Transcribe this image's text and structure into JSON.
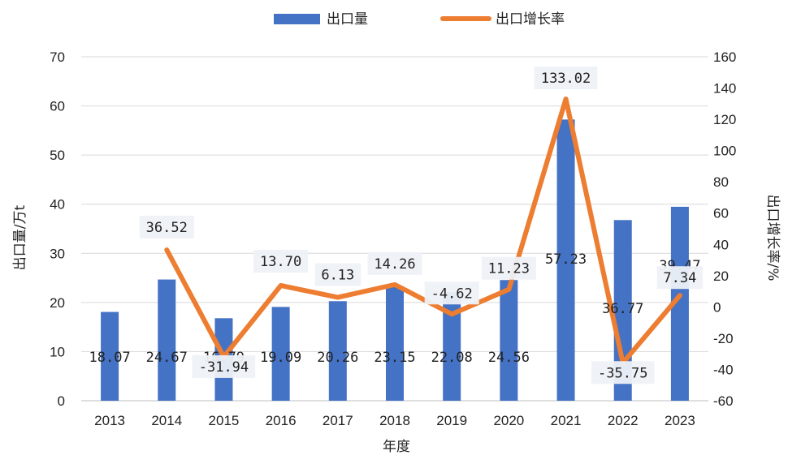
{
  "chart_data": {
    "type": "bar",
    "title": "",
    "xlabel": "年度",
    "categories": [
      "2013",
      "2014",
      "2015",
      "2016",
      "2017",
      "2018",
      "2019",
      "2020",
      "2021",
      "2022",
      "2023"
    ],
    "series": [
      {
        "name": "出口量",
        "kind": "bar",
        "axis": "left",
        "values": [
          18.07,
          24.67,
          16.79,
          19.09,
          20.26,
          23.15,
          22.08,
          24.56,
          57.23,
          36.77,
          39.47
        ],
        "labels": [
          "18.07",
          "24.67",
          "16.79",
          "19.09",
          "20.26",
          "23.15",
          "22.08",
          "24.56",
          "57.23",
          "36.77",
          "39.47"
        ]
      },
      {
        "name": "出口增长率",
        "kind": "line",
        "axis": "right",
        "values": [
          null,
          36.52,
          -31.94,
          13.7,
          6.13,
          14.26,
          -4.62,
          11.23,
          133.02,
          -35.75,
          7.34
        ],
        "labels": [
          "",
          "36.52",
          "-31.94",
          "13.70",
          "6.13",
          "14.26",
          "-4.62",
          "11.23",
          "133.02",
          "-35.75",
          "7.34"
        ]
      }
    ],
    "y_left": {
      "label": "出口量/万t",
      "ylim": [
        0,
        70
      ],
      "ticks": [
        "0",
        "10",
        "20",
        "30",
        "40",
        "50",
        "60",
        "70"
      ]
    },
    "y_right": {
      "label": "出口增长率/%",
      "ylim": [
        -60,
        160
      ],
      "ticks": [
        "-60",
        "-40",
        "-20",
        "0",
        "20",
        "40",
        "60",
        "80",
        "100",
        "120",
        "140",
        "160"
      ]
    },
    "legend_position": "top-center",
    "grid": true,
    "colors": {
      "bar": "#4472c4",
      "line": "#ed7d31",
      "grid": "#d9d9d9",
      "label_box": "#eef1f7"
    }
  }
}
